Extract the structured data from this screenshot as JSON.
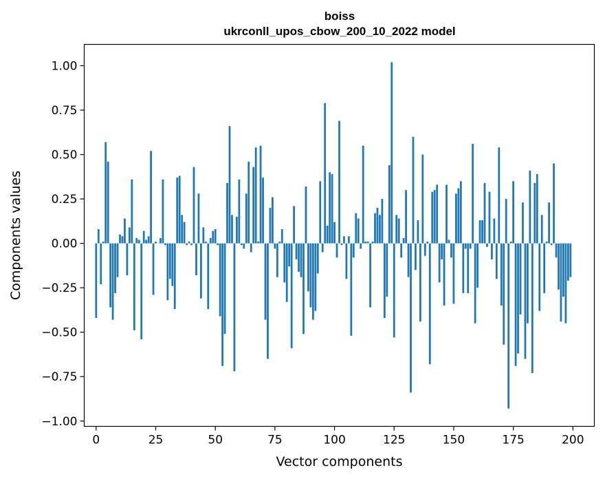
{
  "chart_data": {
    "type": "bar",
    "title": "boiss",
    "subtitle": "ukrconll_upos_cbow_200_10_2022 model",
    "xlabel": "Vector components",
    "ylabel": "Components values",
    "xlim": [
      -5,
      209
    ],
    "ylim": [
      -1.03,
      1.12
    ],
    "xticks": [
      0,
      25,
      50,
      75,
      100,
      125,
      150,
      175,
      200
    ],
    "yticks": [
      -1.0,
      -0.75,
      -0.5,
      -0.25,
      0.0,
      0.25,
      0.5,
      0.75,
      1.0
    ],
    "xtick_labels": [
      "0",
      "25",
      "50",
      "75",
      "100",
      "125",
      "150",
      "175",
      "200"
    ],
    "ytick_labels": [
      "−1.00",
      "−0.75",
      "−0.50",
      "−0.25",
      "0.00",
      "0.25",
      "0.50",
      "0.75",
      "1.00"
    ],
    "bar_color": "#1f77b4",
    "grid": false,
    "x": [
      0,
      1,
      2,
      3,
      4,
      5,
      6,
      7,
      8,
      9,
      10,
      11,
      12,
      13,
      14,
      15,
      16,
      17,
      18,
      19,
      20,
      21,
      22,
      23,
      24,
      25,
      26,
      27,
      28,
      29,
      30,
      31,
      32,
      33,
      34,
      35,
      36,
      37,
      38,
      39,
      40,
      41,
      42,
      43,
      44,
      45,
      46,
      47,
      48,
      49,
      50,
      51,
      52,
      53,
      54,
      55,
      56,
      57,
      58,
      59,
      60,
      61,
      62,
      63,
      64,
      65,
      66,
      67,
      68,
      69,
      70,
      71,
      72,
      73,
      74,
      75,
      76,
      77,
      78,
      79,
      80,
      81,
      82,
      83,
      84,
      85,
      86,
      87,
      88,
      89,
      90,
      91,
      92,
      93,
      94,
      95,
      96,
      97,
      98,
      99,
      100,
      101,
      102,
      103,
      104,
      105,
      106,
      107,
      108,
      109,
      110,
      111,
      112,
      113,
      114,
      115,
      116,
      117,
      118,
      119,
      120,
      121,
      122,
      123,
      124,
      125,
      126,
      127,
      128,
      129,
      130,
      131,
      132,
      133,
      134,
      135,
      136,
      137,
      138,
      139,
      140,
      141,
      142,
      143,
      144,
      145,
      146,
      147,
      148,
      149,
      150,
      151,
      152,
      153,
      154,
      155,
      156,
      157,
      158,
      159,
      160,
      161,
      162,
      163,
      164,
      165,
      166,
      167,
      168,
      169,
      170,
      171,
      172,
      173,
      174,
      175,
      176,
      177,
      178,
      179,
      180,
      181,
      182,
      183,
      184,
      185,
      186,
      187,
      188,
      189,
      190,
      191,
      192,
      193,
      194,
      195,
      196,
      197,
      198,
      199
    ],
    "values": [
      -0.42,
      0.08,
      -0.23,
      0.01,
      0.57,
      0.46,
      -0.36,
      -0.43,
      -0.28,
      -0.19,
      0.05,
      0.04,
      0.14,
      -0.18,
      0.09,
      0.36,
      -0.49,
      0.03,
      0.02,
      -0.54,
      0.07,
      0.02,
      0.04,
      0.52,
      -0.29,
      0.01,
      0.0,
      0.03,
      0.36,
      -0.01,
      -0.32,
      -0.2,
      -0.24,
      -0.37,
      0.37,
      0.38,
      0.16,
      0.12,
      -0.01,
      0.01,
      -0.01,
      0.43,
      -0.18,
      0.28,
      -0.31,
      0.09,
      0.01,
      -0.37,
      0.03,
      0.07,
      0.08,
      -0.01,
      -0.41,
      -0.69,
      -0.51,
      0.34,
      0.66,
      0.16,
      -0.72,
      0.15,
      0.36,
      -0.01,
      -0.03,
      0.28,
      0.46,
      -0.05,
      0.43,
      0.54,
      0.01,
      0.55,
      0.37,
      -0.43,
      -0.65,
      0.2,
      0.26,
      -0.03,
      -0.19,
      0.01,
      0.08,
      -0.22,
      -0.33,
      -0.13,
      -0.59,
      0.21,
      -0.09,
      -0.16,
      -0.19,
      -0.51,
      0.32,
      -0.27,
      -0.36,
      -0.43,
      -0.38,
      -0.17,
      0.35,
      -0.05,
      0.79,
      0.1,
      0.4,
      0.39,
      0.12,
      -0.08,
      0.69,
      -0.01,
      0.04,
      -0.2,
      0.04,
      -0.52,
      -0.08,
      0.17,
      0.14,
      -0.03,
      0.55,
      0.01,
      0.01,
      -0.36,
      0.01,
      0.17,
      0.2,
      0.16,
      0.25,
      -0.42,
      -0.3,
      0.44,
      1.02,
      -0.53,
      0.16,
      0.14,
      -0.08,
      0.03,
      0.3,
      -0.19,
      -0.84,
      0.6,
      -0.15,
      0.13,
      -0.44,
      0.5,
      -0.07,
      0.01,
      -0.68,
      0.29,
      0.3,
      0.33,
      -0.22,
      -0.09,
      -0.35,
      0.33,
      0.02,
      -0.08,
      -0.34,
      0.28,
      0.31,
      0.35,
      -0.28,
      -0.03,
      -0.28,
      -0.03,
      0.56,
      -0.45,
      -0.25,
      0.13,
      0.13,
      0.34,
      -0.02,
      0.29,
      -0.09,
      0.14,
      -0.2,
      0.54,
      -0.35,
      -0.57,
      0.25,
      -0.93,
      0.01,
      0.35,
      -0.69,
      -0.62,
      -0.4,
      0.23,
      -0.65,
      -0.45,
      0.41,
      -0.73,
      0.34,
      0.39,
      -0.38,
      0.16,
      -0.28,
      0.01,
      0.23,
      -0.01,
      0.45,
      -0.08,
      -0.26,
      -0.44,
      -0.3,
      -0.45,
      -0.21,
      -0.19
    ]
  }
}
